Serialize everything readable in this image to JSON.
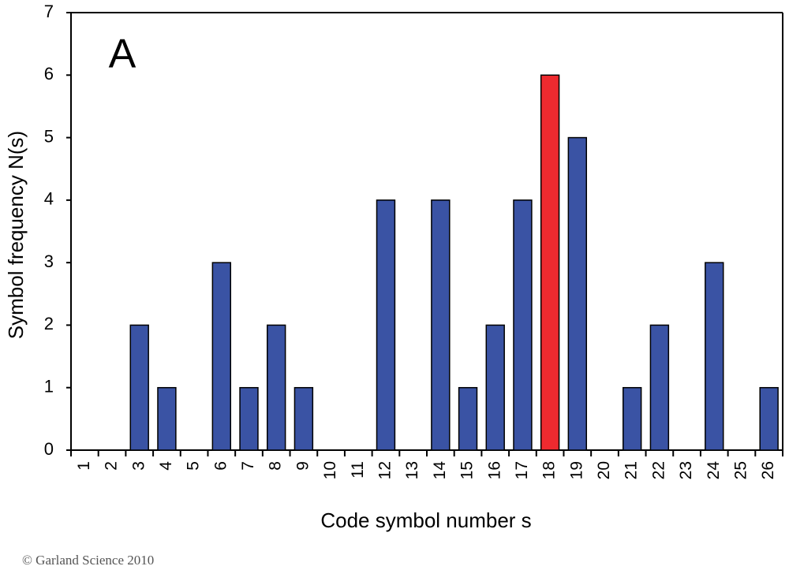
{
  "chart_data": {
    "type": "bar",
    "panel_label": "A",
    "xlabel": "Code symbol number s",
    "ylabel": "Symbol frequency N(s)",
    "footer": "© Garland Science 2010",
    "categories": [
      "1",
      "2",
      "3",
      "4",
      "5",
      "6",
      "7",
      "8",
      "9",
      "10",
      "11",
      "12",
      "13",
      "14",
      "15",
      "16",
      "17",
      "18",
      "19",
      "20",
      "21",
      "22",
      "23",
      "24",
      "25",
      "26"
    ],
    "values": [
      0,
      0,
      2,
      1,
      0,
      3,
      1,
      2,
      1,
      0,
      0,
      4,
      0,
      4,
      1,
      2,
      4,
      6,
      5,
      0,
      1,
      2,
      0,
      3,
      0,
      1
    ],
    "colors": [
      "#3a53a4",
      "#3a53a4",
      "#3a53a4",
      "#3a53a4",
      "#3a53a4",
      "#3a53a4",
      "#3a53a4",
      "#3a53a4",
      "#3a53a4",
      "#3a53a4",
      "#3a53a4",
      "#3a53a4",
      "#3a53a4",
      "#3a53a4",
      "#3a53a4",
      "#3a53a4",
      "#3a53a4",
      "#ee2a2f",
      "#3a53a4",
      "#3a53a4",
      "#3a53a4",
      "#3a53a4",
      "#3a53a4",
      "#3a53a4",
      "#3a53a4",
      "#3a53a4"
    ],
    "ylim": [
      0,
      7
    ],
    "yticks": [
      0,
      1,
      2,
      3,
      4,
      5,
      6,
      7
    ],
    "grid": false
  }
}
